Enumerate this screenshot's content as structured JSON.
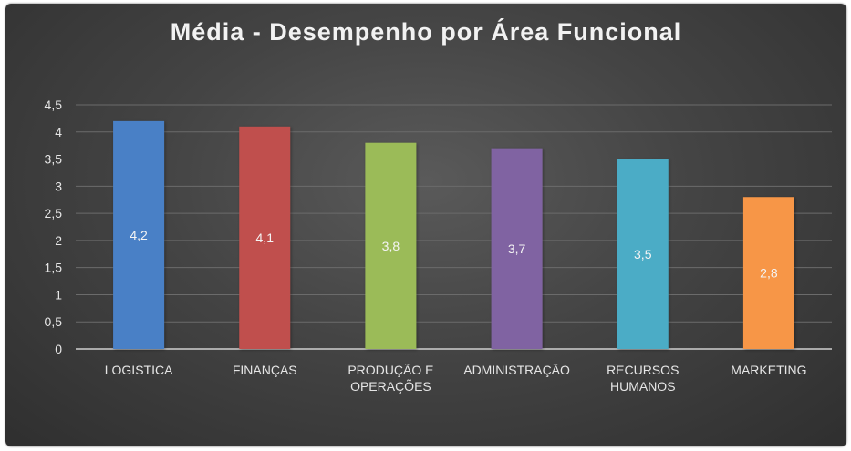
{
  "chart_data": {
    "type": "bar",
    "title": "Média - Desempenho por Área Funcional",
    "xlabel": "",
    "ylabel": "",
    "ylim": [
      0,
      4.5
    ],
    "yticks": [
      "0",
      "0,5",
      "1",
      "1,5",
      "2",
      "2,5",
      "3",
      "3,5",
      "4",
      "4,5"
    ],
    "grid": true,
    "legend": "none",
    "categories": [
      [
        "LOGISTICA"
      ],
      [
        "FINANÇAS"
      ],
      [
        "PRODUÇÃO E",
        "OPERAÇÕES"
      ],
      [
        "ADMINISTRAÇÃO"
      ],
      [
        "RECURSOS",
        "HUMANOS"
      ],
      [
        "MARKETING"
      ]
    ],
    "values": [
      4.2,
      4.1,
      3.8,
      3.7,
      3.5,
      2.8
    ],
    "data_labels": [
      "4,2",
      "4,1",
      "3,8",
      "3,7",
      "3,5",
      "2,8"
    ],
    "colors": [
      "#4a80c6",
      "#c0504d",
      "#9bbb59",
      "#8064a2",
      "#4bacc6",
      "#f79646"
    ]
  }
}
